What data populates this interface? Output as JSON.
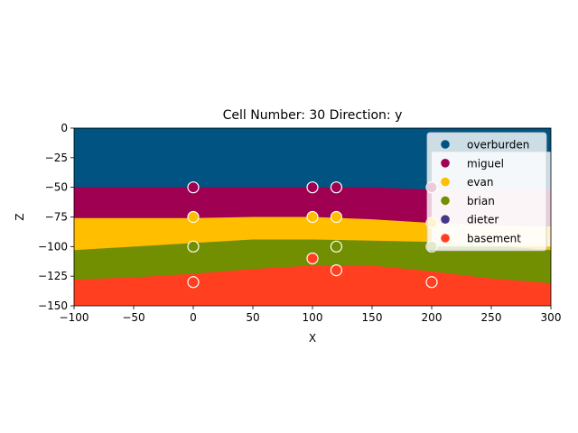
{
  "chart_data": {
    "type": "area",
    "title": "Cell Number: 30 Direction: y",
    "xlabel": "X",
    "ylabel": "Z",
    "xlim": [
      -100,
      300
    ],
    "ylim": [
      -150,
      0
    ],
    "xticks": [
      -100,
      -50,
      0,
      50,
      100,
      150,
      200,
      250,
      300
    ],
    "yticks": [
      0,
      -25,
      -50,
      -75,
      -100,
      -125,
      -150
    ],
    "grid": false,
    "legend_position": "top-right",
    "layers": [
      {
        "name": "overburden",
        "color": "#015482",
        "top": [
          [
            -100,
            0
          ],
          [
            300,
            0
          ]
        ]
      },
      {
        "name": "miguel",
        "color": "#9f0052",
        "top": [
          [
            -100,
            -50
          ],
          [
            0,
            -50
          ],
          [
            100,
            -50
          ],
          [
            150,
            -50
          ],
          [
            200,
            -52
          ],
          [
            300,
            -52
          ]
        ]
      },
      {
        "name": "evan",
        "color": "#ffbe00",
        "top": [
          [
            -100,
            -76
          ],
          [
            0,
            -76
          ],
          [
            50,
            -75
          ],
          [
            100,
            -75
          ],
          [
            150,
            -77
          ],
          [
            200,
            -80
          ],
          [
            250,
            -82
          ],
          [
            300,
            -83
          ]
        ]
      },
      {
        "name": "brian",
        "color": "#728f02",
        "top": [
          [
            -100,
            -103
          ],
          [
            -50,
            -100
          ],
          [
            0,
            -97
          ],
          [
            50,
            -94
          ],
          [
            100,
            -94
          ],
          [
            150,
            -95
          ],
          [
            200,
            -96
          ],
          [
            250,
            -99
          ],
          [
            300,
            -103
          ]
        ]
      },
      {
        "name": "basement",
        "color": "#ff3f20",
        "top": [
          [
            -100,
            -128
          ],
          [
            -50,
            -126
          ],
          [
            0,
            -123
          ],
          [
            50,
            -119
          ],
          [
            100,
            -116
          ],
          [
            150,
            -116
          ],
          [
            200,
            -121
          ],
          [
            250,
            -127
          ],
          [
            300,
            -131
          ]
        ]
      }
    ],
    "overlay": {
      "x_from": 200,
      "x_to": 300,
      "y_from": -20,
      "y_to": -100,
      "color": "#ffffff",
      "opacity": 0.8
    },
    "points": [
      {
        "x": 0,
        "y": -50,
        "layer": "miguel"
      },
      {
        "x": 100,
        "y": -50,
        "layer": "miguel"
      },
      {
        "x": 120,
        "y": -50,
        "layer": "miguel"
      },
      {
        "x": 200,
        "y": -50,
        "layer": "miguel"
      },
      {
        "x": 0,
        "y": -75,
        "layer": "evan"
      },
      {
        "x": 100,
        "y": -75,
        "layer": "evan"
      },
      {
        "x": 120,
        "y": -75,
        "layer": "evan"
      },
      {
        "x": 200,
        "y": -80,
        "layer": "evan"
      },
      {
        "x": 0,
        "y": -100,
        "layer": "brian"
      },
      {
        "x": 120,
        "y": -100,
        "layer": "brian"
      },
      {
        "x": 200,
        "y": -100,
        "layer": "brian"
      },
      {
        "x": 100,
        "y": -110,
        "layer": "basement"
      },
      {
        "x": 120,
        "y": -120,
        "layer": "basement"
      },
      {
        "x": 0,
        "y": -130,
        "layer": "basement"
      },
      {
        "x": 200,
        "y": -130,
        "layer": "basement"
      }
    ],
    "point_colors": {
      "miguel": "#9f0052",
      "evan": "#ffbe00",
      "brian": "#728f02",
      "basement": "#ff3f20"
    },
    "legend": [
      {
        "label": "overburden",
        "color": "#015482"
      },
      {
        "label": "miguel",
        "color": "#9f0052"
      },
      {
        "label": "evan",
        "color": "#ffbe00"
      },
      {
        "label": "brian",
        "color": "#728f02"
      },
      {
        "label": "dieter",
        "color": "#443988"
      },
      {
        "label": "basement",
        "color": "#ff3f20"
      }
    ]
  }
}
